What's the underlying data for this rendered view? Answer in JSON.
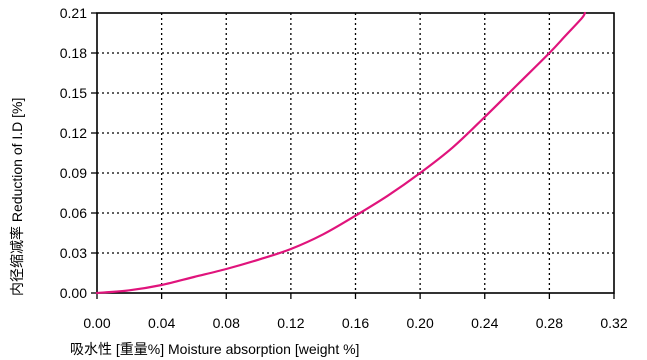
{
  "chart_data": {
    "type": "line",
    "title": "",
    "xlabel": "吸水性 [重量%]  Moisture absorption [weight %]",
    "ylabel": "内径缩减率 Reduction of I.D [%]",
    "xlim": [
      0,
      0.32
    ],
    "ylim": [
      0,
      0.21
    ],
    "x_ticks": [
      "0.00",
      "0.04",
      "0.08",
      "0.12",
      "0.16",
      "0.20",
      "0.24",
      "0.28",
      "0.32"
    ],
    "y_ticks": [
      "0.00",
      "0.03",
      "0.06",
      "0.09",
      "0.12",
      "0.15",
      "0.18",
      "0.21"
    ],
    "grid": true,
    "series": [
      {
        "color": "#e0147c",
        "x": [
          0.0,
          0.02,
          0.04,
          0.06,
          0.08,
          0.1,
          0.12,
          0.14,
          0.16,
          0.18,
          0.2,
          0.22,
          0.24,
          0.26,
          0.28,
          0.29,
          0.3,
          0.302
        ],
        "y": [
          0.0,
          0.002,
          0.006,
          0.012,
          0.018,
          0.025,
          0.033,
          0.044,
          0.058,
          0.073,
          0.09,
          0.109,
          0.132,
          0.156,
          0.18,
          0.193,
          0.206,
          0.21
        ]
      }
    ]
  }
}
